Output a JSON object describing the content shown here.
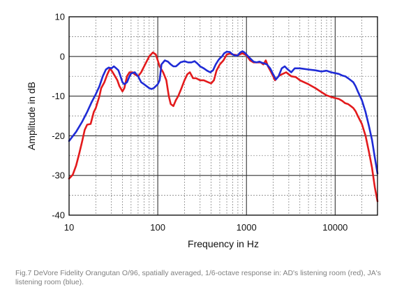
{
  "caption": "Fig.7 DeVore Fidelity Orangutan O/96, spatially averaged, 1/6-octave response in: AD's listening room (red), JA's listening room (blue).",
  "chart_data": {
    "type": "line",
    "xlabel": "Frequency in Hz",
    "ylabel": "Amplitude in dB",
    "xscale": "log",
    "xlim": [
      10,
      30000
    ],
    "ylim": [
      -40,
      10
    ],
    "x_ticks": [
      10,
      100,
      1000,
      10000
    ],
    "x_tick_labels": [
      "10",
      "100",
      "1000",
      "10000"
    ],
    "y_ticks": [
      10,
      0,
      -10,
      -20,
      -30,
      -40
    ],
    "y_tick_labels": [
      "10",
      "0",
      "-10",
      "-20",
      "-30",
      "-40"
    ],
    "grid": true,
    "series": [
      {
        "color": "#e31a1c",
        "points": [
          [
            10,
            -30.8
          ],
          [
            11,
            -29.8
          ],
          [
            12,
            -27.5
          ],
          [
            13,
            -24.5
          ],
          [
            14,
            -21.5
          ],
          [
            15,
            -18.5
          ],
          [
            16,
            -17.2
          ],
          [
            17.5,
            -17
          ],
          [
            19,
            -14
          ],
          [
            20,
            -13
          ],
          [
            22,
            -10
          ],
          [
            23,
            -8
          ],
          [
            25,
            -6.5
          ],
          [
            27,
            -4.5
          ],
          [
            29,
            -3
          ],
          [
            31,
            -4
          ],
          [
            33,
            -5
          ],
          [
            35,
            -6
          ],
          [
            37,
            -7.5
          ],
          [
            40,
            -8.8
          ],
          [
            42,
            -8
          ],
          [
            45,
            -5
          ],
          [
            48,
            -4
          ],
          [
            52,
            -4
          ],
          [
            55,
            -4.5
          ],
          [
            60,
            -5
          ],
          [
            65,
            -4
          ],
          [
            72,
            -2
          ],
          [
            80,
            0
          ],
          [
            88,
            1
          ],
          [
            95,
            0.5
          ],
          [
            100,
            -1
          ],
          [
            105,
            -2.5
          ],
          [
            115,
            -4
          ],
          [
            125,
            -6
          ],
          [
            133,
            -10
          ],
          [
            140,
            -12
          ],
          [
            150,
            -12.5
          ],
          [
            160,
            -11
          ],
          [
            170,
            -10
          ],
          [
            185,
            -8
          ],
          [
            200,
            -6
          ],
          [
            215,
            -4.5
          ],
          [
            230,
            -4
          ],
          [
            250,
            -5.5
          ],
          [
            270,
            -5.5
          ],
          [
            300,
            -6
          ],
          [
            330,
            -6
          ],
          [
            370,
            -6.5
          ],
          [
            400,
            -6.8
          ],
          [
            430,
            -6
          ],
          [
            460,
            -3.5
          ],
          [
            500,
            -2
          ],
          [
            550,
            -1
          ],
          [
            600,
            0.5
          ],
          [
            650,
            0.7
          ],
          [
            700,
            0.5
          ],
          [
            800,
            0.3
          ],
          [
            900,
            0.8
          ],
          [
            1000,
            0.3
          ],
          [
            1100,
            -1
          ],
          [
            1200,
            -1.5
          ],
          [
            1300,
            -1.5
          ],
          [
            1450,
            -1.5
          ],
          [
            1550,
            -2
          ],
          [
            1650,
            -1
          ],
          [
            1750,
            -2.5
          ],
          [
            1900,
            -4
          ],
          [
            2000,
            -5
          ],
          [
            2100,
            -6
          ],
          [
            2300,
            -5
          ],
          [
            2500,
            -4.5
          ],
          [
            2800,
            -4
          ],
          [
            3200,
            -5
          ],
          [
            3600,
            -5.2
          ],
          [
            4000,
            -6
          ],
          [
            5000,
            -7
          ],
          [
            6000,
            -8
          ],
          [
            7000,
            -9
          ],
          [
            8000,
            -9.8
          ],
          [
            9000,
            -10.2
          ],
          [
            10000,
            -10.5
          ],
          [
            11000,
            -10.7
          ],
          [
            12000,
            -11.2
          ],
          [
            13000,
            -11.8
          ],
          [
            14000,
            -12
          ],
          [
            15000,
            -12.5
          ],
          [
            16000,
            -13
          ],
          [
            17000,
            -13.8
          ],
          [
            18000,
            -15
          ],
          [
            20000,
            -17
          ],
          [
            22000,
            -20
          ],
          [
            24000,
            -24
          ],
          [
            26000,
            -28
          ],
          [
            28000,
            -33
          ],
          [
            30000,
            -36.5
          ]
        ]
      },
      {
        "color": "#1f2bd6",
        "points": [
          [
            10,
            -21.3
          ],
          [
            12,
            -19
          ],
          [
            14,
            -16.5
          ],
          [
            16,
            -14
          ],
          [
            18,
            -11.5
          ],
          [
            20,
            -9.5
          ],
          [
            22,
            -7.5
          ],
          [
            24,
            -5
          ],
          [
            26,
            -3.3
          ],
          [
            28,
            -2.8
          ],
          [
            30,
            -3
          ],
          [
            32,
            -2.5
          ],
          [
            34,
            -3
          ],
          [
            36,
            -3.5
          ],
          [
            38,
            -5
          ],
          [
            40,
            -6.5
          ],
          [
            42,
            -7
          ],
          [
            45,
            -6.5
          ],
          [
            48,
            -5
          ],
          [
            50,
            -4.3
          ],
          [
            55,
            -4
          ],
          [
            60,
            -5
          ],
          [
            65,
            -6.5
          ],
          [
            70,
            -7
          ],
          [
            75,
            -7.5
          ],
          [
            80,
            -8
          ],
          [
            85,
            -8.2
          ],
          [
            90,
            -8
          ],
          [
            100,
            -7
          ],
          [
            105,
            -6
          ],
          [
            110,
            -2
          ],
          [
            120,
            -1
          ],
          [
            130,
            -1.3
          ],
          [
            140,
            -2
          ],
          [
            150,
            -2.5
          ],
          [
            160,
            -2.5
          ],
          [
            170,
            -2
          ],
          [
            180,
            -1.5
          ],
          [
            200,
            -1.2
          ],
          [
            220,
            -1.5
          ],
          [
            240,
            -1.5
          ],
          [
            260,
            -1.2
          ],
          [
            280,
            -1.8
          ],
          [
            300,
            -2.5
          ],
          [
            330,
            -3
          ],
          [
            360,
            -3.6
          ],
          [
            390,
            -4
          ],
          [
            420,
            -3.5
          ],
          [
            450,
            -2
          ],
          [
            480,
            -1
          ],
          [
            500,
            -0.5
          ],
          [
            530,
            0
          ],
          [
            560,
            0.8
          ],
          [
            600,
            1.2
          ],
          [
            650,
            1.1
          ],
          [
            700,
            0.5
          ],
          [
            750,
            0.2
          ],
          [
            800,
            0.3
          ],
          [
            850,
            1
          ],
          [
            900,
            1.3
          ],
          [
            950,
            1
          ],
          [
            1000,
            0.5
          ],
          [
            1100,
            -0.5
          ],
          [
            1200,
            -1.3
          ],
          [
            1300,
            -1.5
          ],
          [
            1400,
            -1.3
          ],
          [
            1500,
            -1.6
          ],
          [
            1600,
            -1.8
          ],
          [
            1700,
            -2
          ],
          [
            1850,
            -3
          ],
          [
            2000,
            -4.5
          ],
          [
            2150,
            -5.8
          ],
          [
            2300,
            -5
          ],
          [
            2500,
            -3
          ],
          [
            2700,
            -2.5
          ],
          [
            2900,
            -3.2
          ],
          [
            3200,
            -4
          ],
          [
            3500,
            -3
          ],
          [
            4000,
            -3
          ],
          [
            5000,
            -3.3
          ],
          [
            6000,
            -3.5
          ],
          [
            7000,
            -3.8
          ],
          [
            8000,
            -3.6
          ],
          [
            9000,
            -4
          ],
          [
            10000,
            -4.2
          ],
          [
            11000,
            -4.4
          ],
          [
            12000,
            -4.8
          ],
          [
            13000,
            -5
          ],
          [
            14000,
            -5.5
          ],
          [
            15000,
            -6
          ],
          [
            16000,
            -6.5
          ],
          [
            17000,
            -7.5
          ],
          [
            18000,
            -8.8
          ],
          [
            20000,
            -11
          ],
          [
            22000,
            -14
          ],
          [
            24000,
            -17.5
          ],
          [
            26000,
            -21
          ],
          [
            28000,
            -25.5
          ],
          [
            30000,
            -29.5
          ]
        ]
      }
    ]
  }
}
